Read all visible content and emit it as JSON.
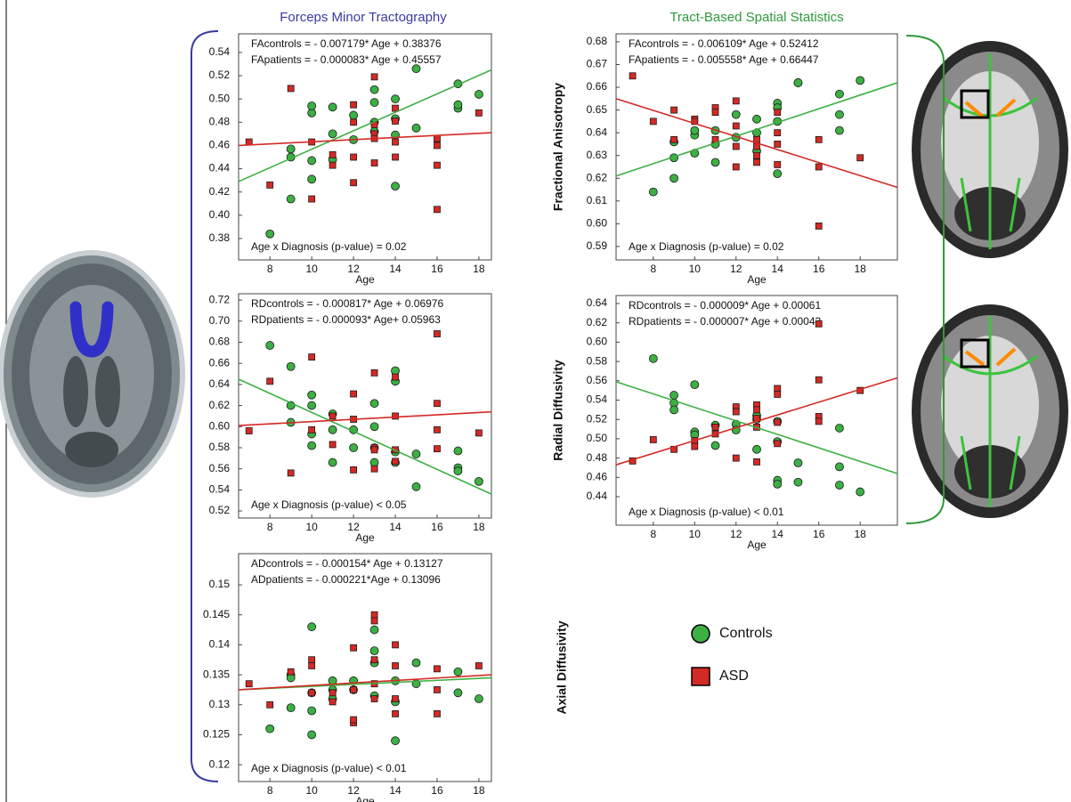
{
  "headers": {
    "left": "Forceps Minor Tractography",
    "right": "Tract-Based Spatial Statistics"
  },
  "legend_position": "bottom-right",
  "chart_data": [
    {
      "type": "scatter",
      "x_label": "Age",
      "annotations": [
        "FAcontrols = - 0.007179* Age + 0.38376",
        "FApatients = - 0.000083* Age + 0.45557",
        "Age x Diagnosis (p-value) = 0.02"
      ],
      "xlim": [
        6.5,
        18.6
      ],
      "xticks": [
        8,
        10,
        12,
        14,
        16,
        18
      ],
      "ylim": [
        0.3616,
        0.556
      ],
      "yticks": [
        0.38,
        {
          "value": 0.4,
          "label": "0.40"
        },
        0.42,
        0.44,
        0.46,
        0.48,
        {
          "value": 0.5,
          "label": "0.50"
        },
        0.52,
        0.54
      ],
      "series": [
        {
          "name": "Controls",
          "color": "#3cb043",
          "marker": "circle",
          "x": [
            8,
            9,
            9,
            9,
            10,
            10,
            10,
            10,
            11,
            11,
            11,
            12,
            12,
            13,
            13,
            13,
            13,
            14,
            14,
            14,
            14,
            15,
            15,
            17,
            17,
            17,
            18
          ],
          "values": [
            0.384,
            0.414,
            0.45,
            0.457,
            0.431,
            0.447,
            0.488,
            0.494,
            0.448,
            0.47,
            0.493,
            0.486,
            0.465,
            0.497,
            0.508,
            0.48,
            0.472,
            0.425,
            0.483,
            0.469,
            0.5,
            0.526,
            0.475,
            0.492,
            0.495,
            0.513,
            0.504
          ],
          "trend": [
            0.429,
            0.525
          ]
        },
        {
          "name": "ASD",
          "color": "#d42a25",
          "marker": "square",
          "x": [
            7,
            8,
            9,
            10,
            10,
            11,
            11,
            12,
            12,
            12,
            12,
            13,
            13,
            13,
            13,
            13,
            14,
            14,
            14,
            14,
            16,
            16,
            16,
            16,
            18
          ],
          "values": [
            0.463,
            0.426,
            0.509,
            0.463,
            0.414,
            0.443,
            0.452,
            0.495,
            0.45,
            0.428,
            0.48,
            0.519,
            0.47,
            0.445,
            0.478,
            0.466,
            0.492,
            0.481,
            0.463,
            0.45,
            0.466,
            0.443,
            0.405,
            0.46,
            0.488
          ],
          "trend": [
            0.46,
            0.471
          ]
        }
      ]
    },
    {
      "type": "scatter",
      "x_label": "Age",
      "annotations": [
        "RDcontrols = - 0.000817* Age + 0.06976",
        "RDpatients = - 0.000093* Age+ 0.05963",
        "Age x Diagnosis (p-value) < 0.05"
      ],
      "xlim": [
        6.5,
        18.6
      ],
      "xticks": [
        8,
        10,
        12,
        14,
        16,
        18
      ],
      "ylim": [
        0.5133,
        0.726
      ],
      "yticks": [
        0.52,
        0.54,
        0.56,
        0.58,
        {
          "value": 0.6,
          "label": "0.60"
        },
        0.62,
        0.64,
        0.66,
        0.68,
        {
          "value": 0.7,
          "label": "0.70"
        },
        0.72
      ],
      "series": [
        {
          "color": "#3cb043",
          "marker": "circle",
          "x": [
            8,
            9,
            9,
            9,
            10,
            10,
            10,
            10,
            11,
            11,
            11,
            12,
            12,
            13,
            13,
            13,
            13,
            14,
            14,
            14,
            14,
            15,
            15,
            17,
            17,
            17,
            18
          ],
          "values": [
            0.677,
            0.657,
            0.62,
            0.604,
            0.63,
            0.62,
            0.593,
            0.582,
            0.612,
            0.597,
            0.566,
            0.597,
            0.58,
            0.622,
            0.6,
            0.58,
            0.566,
            0.653,
            0.643,
            0.576,
            0.566,
            0.574,
            0.543,
            0.577,
            0.561,
            0.558,
            0.548
          ],
          "trend": [
            0.645,
            0.536
          ]
        },
        {
          "color": "#d42a25",
          "marker": "square",
          "x": [
            7,
            8,
            9,
            10,
            10,
            11,
            11,
            12,
            12,
            12,
            13,
            13,
            13,
            13,
            14,
            14,
            14,
            14,
            16,
            16,
            16,
            16,
            18
          ],
          "values": [
            0.596,
            0.643,
            0.556,
            0.666,
            0.597,
            0.61,
            0.583,
            0.631,
            0.607,
            0.559,
            0.651,
            0.58,
            0.578,
            0.56,
            0.647,
            0.61,
            0.578,
            0.567,
            0.688,
            0.622,
            0.597,
            0.579,
            0.594
          ],
          "trend": [
            0.601,
            0.614
          ]
        }
      ]
    },
    {
      "type": "scatter",
      "x_label": "Age",
      "y_label": "Axial Diffusivity",
      "annotations": [
        "ADcontrols = - 0.000154* Age + 0.13127",
        "ADpatients = - 0.000221*Age + 0.13096",
        "Age x Diagnosis (p-value) < 0.01"
      ],
      "xlim": [
        6.5,
        18.6
      ],
      "xticks": [
        8,
        10,
        12,
        14,
        16,
        18
      ],
      "ylim": [
        0.1172,
        0.1552
      ],
      "yticks": [
        0.12,
        0.125,
        0.13,
        0.135,
        0.14,
        0.145,
        0.15
      ],
      "series": [
        {
          "color": "#3cb043",
          "marker": "circle",
          "x": [
            8,
            9,
            9,
            9,
            10,
            10,
            10,
            10,
            11,
            11,
            11,
            12,
            12,
            13,
            13,
            13,
            13,
            14,
            14,
            14,
            15,
            15,
            17,
            17,
            18
          ],
          "values": [
            0.126,
            0.135,
            0.1345,
            0.1295,
            0.143,
            0.132,
            0.129,
            0.125,
            0.1325,
            0.134,
            0.131,
            0.134,
            0.1325,
            0.1425,
            0.139,
            0.137,
            0.1315,
            0.134,
            0.1305,
            0.124,
            0.137,
            0.1335,
            0.1355,
            0.132,
            0.131
          ],
          "trend": [
            0.1325,
            0.1345
          ]
        },
        {
          "color": "#d42a25",
          "marker": "square",
          "x": [
            7,
            8,
            9,
            10,
            10,
            10,
            11,
            11,
            12,
            12,
            12,
            12,
            13,
            13,
            13,
            13,
            13,
            14,
            14,
            14,
            14,
            16,
            16,
            16,
            18
          ],
          "values": [
            0.1335,
            0.13,
            0.1355,
            0.1375,
            0.1365,
            0.132,
            0.1305,
            0.132,
            0.1395,
            0.1325,
            0.127,
            0.1275,
            0.145,
            0.144,
            0.1375,
            0.1335,
            0.131,
            0.14,
            0.1365,
            0.131,
            0.1285,
            0.136,
            0.1325,
            0.1285,
            0.1365
          ],
          "trend": [
            0.1325,
            0.135
          ]
        }
      ]
    },
    {
      "type": "scatter",
      "x_label": "Age",
      "y_label": "Fractional Anisotropy",
      "annotations": [
        "FAcontrols = - 0.006109* Age + 0.52412",
        "FApatients = - 0.005558* Age + 0.66447",
        "Age x Diagnosis (p-value) = 0.02"
      ],
      "xlim": [
        6.2,
        19.8
      ],
      "xticks": [
        8,
        10,
        12,
        14,
        16,
        18
      ],
      "ylim": [
        0.5841,
        0.6835
      ],
      "yticks": [
        0.59,
        {
          "value": 0.6,
          "label": "0.60"
        },
        0.61,
        0.62,
        0.63,
        0.64,
        0.65,
        0.66,
        0.67,
        0.68
      ],
      "series": [
        {
          "color": "#3cb043",
          "marker": "circle",
          "x": [
            8,
            9,
            9,
            9,
            10,
            10,
            10,
            11,
            11,
            11,
            12,
            12,
            13,
            13,
            13,
            14,
            14,
            14,
            14,
            15,
            15,
            17,
            17,
            17,
            18
          ],
          "values": [
            0.614,
            0.62,
            0.636,
            0.629,
            0.631,
            0.639,
            0.641,
            0.627,
            0.635,
            0.641,
            0.648,
            0.638,
            0.646,
            0.64,
            0.632,
            0.653,
            0.651,
            0.645,
            0.622,
            0.662,
            0.662,
            0.657,
            0.648,
            0.641,
            0.663
          ],
          "trend": [
            0.621,
            0.662
          ]
        },
        {
          "color": "#d42a25",
          "marker": "square",
          "x": [
            7,
            8,
            9,
            9,
            10,
            10,
            11,
            11,
            11,
            12,
            12,
            12,
            12,
            13,
            13,
            13,
            13,
            14,
            14,
            14,
            14,
            16,
            16,
            16,
            18
          ],
          "values": [
            0.665,
            0.645,
            0.65,
            0.637,
            0.646,
            0.645,
            0.651,
            0.649,
            0.637,
            0.654,
            0.643,
            0.634,
            0.625,
            0.637,
            0.634,
            0.63,
            0.627,
            0.649,
            0.64,
            0.635,
            0.626,
            0.637,
            0.625,
            0.599,
            0.629
          ],
          "trend": [
            0.655,
            0.616
          ]
        }
      ]
    },
    {
      "type": "scatter",
      "x_label": "Age",
      "y_label": "Radial Diffusivity",
      "annotations": [
        "RDcontrols = - 0.000009* Age + 0.00061",
        "RDpatients = - 0.000007* Age + 0.00043",
        "Age x Diagnosis (p-value) < 0.01"
      ],
      "xlim": [
        6.2,
        19.8
      ],
      "xticks": [
        8,
        10,
        12,
        14,
        16,
        18
      ],
      "ylim": [
        0.4105,
        0.6483
      ],
      "yticks": [
        0.44,
        0.46,
        0.48,
        {
          "value": 0.5,
          "label": "0.50"
        },
        0.52,
        0.54,
        0.56,
        0.58,
        {
          "value": 0.6,
          "label": "0.60"
        },
        0.62,
        0.64
      ],
      "series": [
        {
          "color": "#3cb043",
          "marker": "circle",
          "x": [
            8,
            9,
            9,
            9,
            10,
            10,
            10,
            11,
            11,
            12,
            12,
            13,
            13,
            13,
            14,
            14,
            14,
            14,
            15,
            15,
            17,
            17,
            17,
            18
          ],
          "values": [
            0.583,
            0.545,
            0.537,
            0.53,
            0.556,
            0.507,
            0.504,
            0.514,
            0.493,
            0.515,
            0.509,
            0.524,
            0.52,
            0.489,
            0.518,
            0.497,
            0.457,
            0.453,
            0.475,
            0.455,
            0.511,
            0.471,
            0.452,
            0.445
          ],
          "trend": [
            0.559,
            0.464
          ]
        },
        {
          "color": "#d42a25",
          "marker": "square",
          "x": [
            7,
            8,
            9,
            10,
            10,
            11,
            11,
            12,
            12,
            12,
            13,
            13,
            13,
            13,
            13,
            14,
            14,
            14,
            14,
            16,
            16,
            16,
            16,
            18
          ],
          "values": [
            0.477,
            0.499,
            0.489,
            0.498,
            0.492,
            0.505,
            0.512,
            0.533,
            0.528,
            0.48,
            0.535,
            0.53,
            0.521,
            0.512,
            0.476,
            0.552,
            0.546,
            0.517,
            0.495,
            0.619,
            0.561,
            0.523,
            0.518,
            0.55
          ],
          "trend": [
            0.473,
            0.563
          ]
        }
      ]
    }
  ]
}
